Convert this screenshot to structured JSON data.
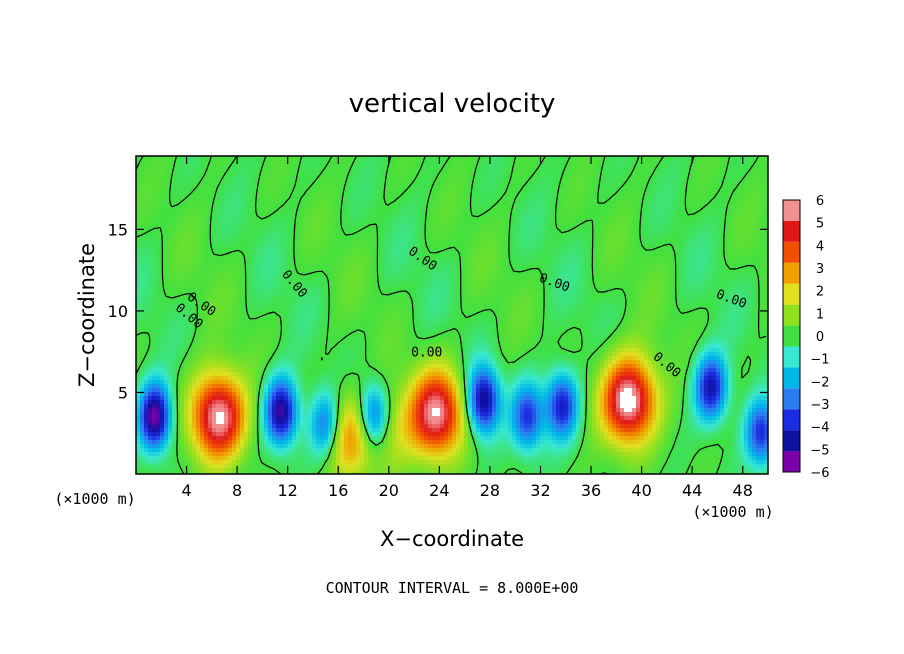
{
  "chart_data": {
    "type": "heatmap",
    "title": "vertical velocity",
    "xlabel": "X−coordinate",
    "ylabel": "Z−coordinate",
    "x_unit": "(×1000 m)",
    "z_unit": "(×1000 m)",
    "xlim": [
      0,
      50
    ],
    "ylim": [
      0,
      19.5
    ],
    "x_ticks": [
      4,
      8,
      12,
      16,
      20,
      24,
      28,
      32,
      36,
      40,
      44,
      48
    ],
    "x_tick_labels": [
      "4",
      "8",
      "12",
      "16",
      "20",
      "24",
      "28",
      "32",
      "36",
      "40",
      "44",
      "48"
    ],
    "y_ticks": [
      5,
      10,
      15
    ],
    "y_tick_labels": [
      "5",
      "10",
      "15"
    ],
    "colorbar": {
      "levels": [
        -6,
        -5,
        -4,
        -3,
        -2,
        -1,
        0,
        1,
        2,
        3,
        4,
        5,
        6
      ],
      "labels": [
        "−6",
        "−5",
        "−4",
        "−3",
        "−2",
        "−1",
        "0",
        "1",
        "2",
        "3",
        "4",
        "5",
        "6"
      ],
      "colors": [
        "#7a00a8",
        "#1010a0",
        "#1c2ce0",
        "#2a7cf0",
        "#00b8e8",
        "#38e8d0",
        "#40e040",
        "#90e020",
        "#e0e020",
        "#f0a000",
        "#f05000",
        "#e01818",
        "#f09090"
      ]
    },
    "contour_labels": [
      "0.00",
      "0.00",
      "0.00",
      "0.00",
      "0.00",
      "0.00",
      "0.00",
      "0.00"
    ],
    "footer": "CONTOUR INTERVAL = 8.000E+00",
    "updrafts": [
      {
        "x": 6.5,
        "z": 3.5,
        "amp": 6.5
      },
      {
        "x": 17.0,
        "z": 2.3,
        "amp": 3.2
      },
      {
        "x": 23.8,
        "z": 3.7,
        "amp": 6.2
      },
      {
        "x": 39.0,
        "z": 4.5,
        "amp": 6.8
      },
      {
        "x": 20.0,
        "z": 2.8,
        "amp": 1.5
      }
    ],
    "downdrafts": [
      {
        "x": 1.5,
        "z": 3.5,
        "amp": 6.0
      },
      {
        "x": 11.5,
        "z": 3.8,
        "amp": 5.5
      },
      {
        "x": 15.0,
        "z": 3.0,
        "amp": 3.5
      },
      {
        "x": 18.8,
        "z": 3.5,
        "amp": 4.5
      },
      {
        "x": 27.5,
        "z": 4.5,
        "amp": 5.5
      },
      {
        "x": 31.0,
        "z": 3.5,
        "amp": 4.0
      },
      {
        "x": 33.7,
        "z": 4.2,
        "amp": 4.5
      },
      {
        "x": 45.5,
        "z": 5.3,
        "amp": 4.8
      },
      {
        "x": 49.5,
        "z": 2.5,
        "amp": 4.0
      }
    ]
  }
}
